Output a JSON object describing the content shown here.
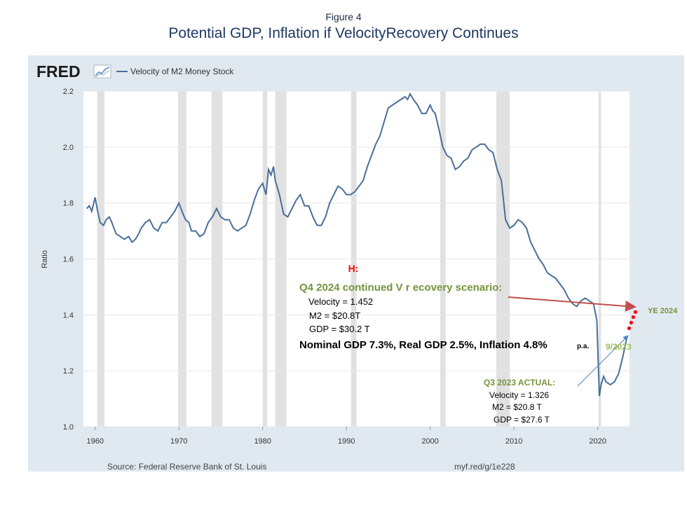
{
  "figure": {
    "label": "Figure 4",
    "title": "Potential GDP, Inflation if VelocityRecovery Continues"
  },
  "fred": {
    "logo": "FRED",
    "logo_icon": "fred-graph-icon",
    "legend_label": "Velocity of M2 Money Stock",
    "source": "Source: Federal Reserve Bank of St. Louis",
    "link": "myf.red/g/1e228"
  },
  "colors": {
    "panel_bg": "#e1e9f0",
    "plot_bg": "#ffffff",
    "series_line": "#4a6e99",
    "recession_shade": "#e1e1e1",
    "red_arrow": "#c0504d",
    "blue_arrow": "#4f81bd",
    "green_text": "#77933c",
    "red_dots": "#ff0000"
  },
  "chart_data": {
    "type": "line",
    "ylabel": "Ratio",
    "xlim": [
      1958.6,
      2023.8
    ],
    "ylim": [
      1.0,
      2.2
    ],
    "yticks": [
      "1.0",
      "1.2",
      "1.4",
      "1.6",
      "1.8",
      "2.0",
      "2.2"
    ],
    "xticks": [
      "1960",
      "1970",
      "1980",
      "1990",
      "2000",
      "2010",
      "2020"
    ],
    "grid": true,
    "recessions": [
      [
        1960.25,
        1961.1
      ],
      [
        1969.9,
        1970.9
      ],
      [
        1973.9,
        1975.2
      ],
      [
        1980.0,
        1980.55
      ],
      [
        1981.5,
        1982.85
      ],
      [
        1990.55,
        1991.2
      ],
      [
        2001.2,
        2001.85
      ],
      [
        2007.9,
        2009.5
      ],
      [
        2020.1,
        2020.4
      ]
    ],
    "series": [
      {
        "name": "Velocity of M2 Money Stock",
        "x": [
          1959.0,
          1959.3,
          1959.6,
          1960.0,
          1960.3,
          1960.6,
          1961.0,
          1961.3,
          1961.7,
          1962.0,
          1962.5,
          1963.0,
          1963.5,
          1964.0,
          1964.4,
          1964.8,
          1965.2,
          1965.5,
          1966.0,
          1966.5,
          1967.0,
          1967.5,
          1968.0,
          1968.5,
          1969.0,
          1969.5,
          1970.0,
          1970.5,
          1970.8,
          1971.2,
          1971.5,
          1972.0,
          1972.5,
          1973.0,
          1973.5,
          1974.0,
          1974.5,
          1975.0,
          1975.5,
          1976.0,
          1976.5,
          1977.0,
          1977.5,
          1978.0,
          1978.5,
          1979.0,
          1979.5,
          1980.0,
          1980.4,
          1980.7,
          1981.0,
          1981.3,
          1981.5,
          1982.0,
          1982.5,
          1983.0,
          1983.5,
          1984.0,
          1984.5,
          1985.0,
          1985.5,
          1986.0,
          1986.5,
          1987.0,
          1987.5,
          1988.0,
          1988.5,
          1989.0,
          1989.5,
          1990.0,
          1990.5,
          1991.0,
          1991.5,
          1992.0,
          1992.5,
          1993.0,
          1993.5,
          1994.0,
          1994.5,
          1995.0,
          1995.5,
          1996.0,
          1996.5,
          1997.0,
          1997.3,
          1997.6,
          1998.0,
          1998.5,
          1999.0,
          1999.5,
          2000.0,
          2000.3,
          2000.6,
          2001.0,
          2001.5,
          2002.0,
          2002.5,
          2003.0,
          2003.5,
          2004.0,
          2004.5,
          2005.0,
          2005.5,
          2006.0,
          2006.5,
          2007.0,
          2007.5,
          2008.0,
          2008.5,
          2009.0,
          2009.5,
          2010.0,
          2010.5,
          2011.0,
          2011.5,
          2012.0,
          2012.5,
          2013.0,
          2013.5,
          2014.0,
          2014.5,
          2015.0,
          2015.5,
          2016.0,
          2016.5,
          2017.0,
          2017.5,
          2018.0,
          2018.5,
          2019.0,
          2019.5,
          2019.9,
          2020.2,
          2020.4,
          2020.7,
          2021.0,
          2021.5,
          2022.0,
          2022.5,
          2023.0,
          2023.5
        ],
        "values": [
          1.78,
          1.79,
          1.77,
          1.82,
          1.77,
          1.73,
          1.72,
          1.74,
          1.75,
          1.73,
          1.69,
          1.68,
          1.67,
          1.68,
          1.66,
          1.67,
          1.69,
          1.71,
          1.73,
          1.74,
          1.71,
          1.7,
          1.73,
          1.73,
          1.75,
          1.77,
          1.8,
          1.76,
          1.74,
          1.73,
          1.7,
          1.7,
          1.68,
          1.69,
          1.73,
          1.75,
          1.78,
          1.75,
          1.74,
          1.74,
          1.71,
          1.7,
          1.71,
          1.72,
          1.76,
          1.81,
          1.85,
          1.87,
          1.83,
          1.92,
          1.9,
          1.93,
          1.88,
          1.83,
          1.76,
          1.75,
          1.78,
          1.81,
          1.83,
          1.79,
          1.79,
          1.75,
          1.72,
          1.72,
          1.75,
          1.8,
          1.83,
          1.86,
          1.85,
          1.83,
          1.83,
          1.84,
          1.86,
          1.88,
          1.93,
          1.97,
          2.01,
          2.04,
          2.09,
          2.14,
          2.15,
          2.16,
          2.17,
          2.18,
          2.17,
          2.19,
          2.17,
          2.15,
          2.12,
          2.12,
          2.15,
          2.13,
          2.12,
          2.07,
          2.0,
          1.97,
          1.96,
          1.92,
          1.93,
          1.95,
          1.96,
          1.99,
          2.0,
          2.01,
          2.01,
          1.99,
          1.98,
          1.92,
          1.88,
          1.74,
          1.71,
          1.72,
          1.74,
          1.73,
          1.71,
          1.66,
          1.63,
          1.6,
          1.58,
          1.55,
          1.54,
          1.53,
          1.51,
          1.49,
          1.46,
          1.44,
          1.43,
          1.45,
          1.46,
          1.45,
          1.44,
          1.38,
          1.11,
          1.15,
          1.18,
          1.16,
          1.15,
          1.16,
          1.19,
          1.25,
          1.32
        ]
      }
    ],
    "scenario_points": {
      "x": [
        2023.75,
        2024.0,
        2024.25,
        2024.5
      ],
      "values": [
        1.352,
        1.372,
        1.392,
        1.41
      ]
    }
  },
  "annotations": {
    "h_label": "H:",
    "scenario_title": "Q4 2024 continued V r ecovery scenario:",
    "scenario_velocity": "Velocity = 1.452",
    "scenario_m2": "M2 = $20.8T",
    "scenario_gdp": "GDP = $30.2 T",
    "nominal_line": "Nominal GDP 7.3%, Real GDP 2.5%, Inflation 4.8%",
    "nominal_suffix": "p.a.",
    "ye_label": "YE 2024",
    "sep_label": "9/2023",
    "actual_title": "Q3 2023 ACTUAL:",
    "actual_velocity": "Velocity = 1.326",
    "actual_m2": "M2 = $20.8 T",
    "actual_gdp": "GDP = $27.6 T"
  }
}
